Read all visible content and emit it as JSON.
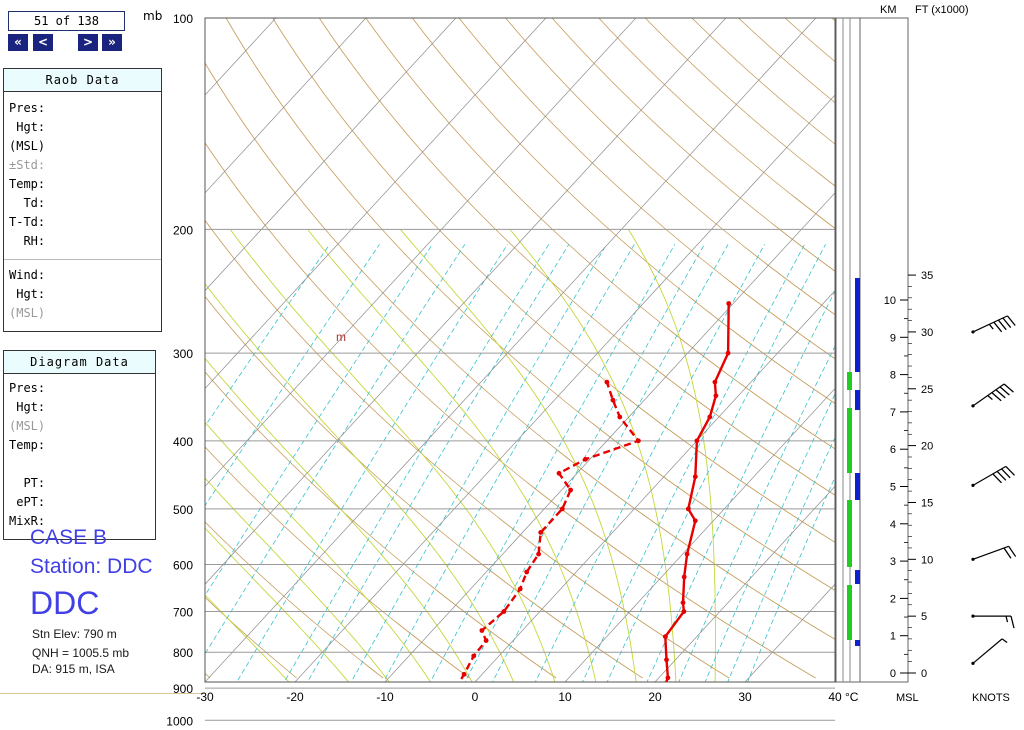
{
  "nav": {
    "counter": "51 of 138",
    "first": "«",
    "prev": "<",
    "next": ">",
    "last": "»"
  },
  "pressure_unit": "mb",
  "raob_panel": {
    "title": "Raob Data",
    "rows": [
      "Pres:",
      " Hgt:",
      "(MSL)",
      "±Std:",
      "Temp:",
      "  Td:",
      "T-Td:",
      "  RH:"
    ],
    "wind_rows": [
      "Wind:",
      " Hgt:",
      "(MSL)"
    ]
  },
  "diagram_panel": {
    "title": "Diagram Data",
    "rows": [
      "Pres:",
      " Hgt:",
      "(MSL)",
      "Temp:",
      "",
      "  PT:",
      " ePT:",
      "MixR:"
    ]
  },
  "station": {
    "case": "CASE B",
    "station_line": "Station: DDC",
    "code": "DDC",
    "elev": "Stn Elev: 790 m",
    "qnh": "QNH = 1005.5 mb",
    "da": "DA: 915 m, ISA"
  },
  "chart_data": {
    "type": "line",
    "title": "",
    "xlabel": "°C",
    "ylabel": "mb",
    "x_range": [
      -30,
      40
    ],
    "x_ticks": [
      -30,
      -20,
      -10,
      0,
      10,
      20,
      30,
      40
    ],
    "pressure_ticks": [
      100,
      200,
      300,
      400,
      500,
      600,
      700,
      800,
      900,
      1000,
      1050
    ],
    "p_range": [
      100,
      1050
    ],
    "skew": true,
    "series": [
      {
        "label": "temperature",
        "style": "solid",
        "color": "#e60000",
        "points": [
          [
            916,
            14.2
          ],
          [
            916,
            21.0
          ],
          [
            922,
            21.5
          ],
          [
            900,
            21.6
          ],
          [
            870,
            21.0
          ],
          [
            820,
            19.0
          ],
          [
            760,
            16.5
          ],
          [
            700,
            16.0
          ],
          [
            680,
            15.0
          ],
          [
            625,
            12.5
          ],
          [
            580,
            10.5
          ],
          [
            520,
            8.0
          ],
          [
            500,
            6.0
          ],
          [
            450,
            3.5
          ],
          [
            400,
            0.0
          ],
          [
            370,
            -1.0
          ],
          [
            345,
            -2.5
          ],
          [
            330,
            -4.0
          ],
          [
            300,
            -5.5
          ],
          [
            255,
            -10.5
          ]
        ]
      },
      {
        "label": "dewpoint",
        "style": "dashed",
        "color": "#e60000",
        "points": [
          [
            916,
            11.5
          ],
          [
            916,
            -2.0
          ],
          [
            900,
            -1.5
          ],
          [
            860,
            -2.0
          ],
          [
            810,
            -2.8
          ],
          [
            770,
            -3.0
          ],
          [
            745,
            -4.5
          ],
          [
            700,
            -4.0
          ],
          [
            650,
            -4.5
          ],
          [
            615,
            -5.5
          ],
          [
            580,
            -6.0
          ],
          [
            540,
            -8.0
          ],
          [
            500,
            -8.0
          ],
          [
            470,
            -9.0
          ],
          [
            445,
            -12.0
          ],
          [
            425,
            -10.5
          ],
          [
            400,
            -6.5
          ],
          [
            370,
            -11.0
          ],
          [
            350,
            -13.5
          ],
          [
            330,
            -16.0
          ]
        ]
      }
    ],
    "annotation": "m",
    "km_scale": [
      "0",
      "1",
      "2",
      "3",
      "4",
      "5",
      "6",
      "7",
      "8",
      "9",
      "10"
    ],
    "ft_scale": [
      "0",
      "5",
      "10",
      "15",
      "20",
      "25",
      "30",
      "35"
    ],
    "km_label": "KM",
    "ft_label": "FT (x1000)",
    "msl_label": "MSL",
    "knots_label": "KNOTS",
    "wind_barbs": [
      {
        "ft": 0.5,
        "speed_kt": 5,
        "direction_deg": 230
      },
      {
        "ft": 5,
        "speed_kt": 15,
        "direction_deg": 270
      },
      {
        "ft": 10,
        "speed_kt": 20,
        "direction_deg": 250
      },
      {
        "ft": 16.5,
        "speed_kt": 40,
        "direction_deg": 240
      },
      {
        "ft": 23.5,
        "speed_kt": 45,
        "direction_deg": 235
      },
      {
        "ft": 30,
        "speed_kt": 45,
        "direction_deg": 245
      }
    ]
  }
}
